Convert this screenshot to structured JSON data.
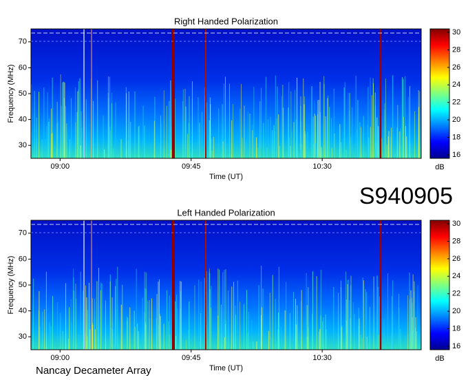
{
  "chart_data": [
    {
      "type": "heatmap",
      "title": "Right Handed Polarization",
      "xlabel": "Time (UT)",
      "ylabel": "Frequency (MHz)",
      "xlim": [
        530,
        664
      ],
      "xticks": [
        {
          "value": 540,
          "label": "09:00"
        },
        {
          "value": 585,
          "label": "09:45"
        },
        {
          "value": 630,
          "label": "10:30"
        }
      ],
      "ylim": [
        25,
        75
      ],
      "yticks": [
        30,
        40,
        50,
        60,
        70
      ],
      "colorbar": {
        "label": "dB",
        "lim": [
          15.6,
          30.4
        ],
        "ticks": [
          16,
          18,
          20,
          22,
          24,
          26,
          28,
          30
        ]
      }
    },
    {
      "type": "heatmap",
      "title": "Left Handed Polarization",
      "xlabel": "Time (UT)",
      "ylabel": "Frequency (MHz)",
      "xlim": [
        530,
        664
      ],
      "xticks": [
        {
          "value": 540,
          "label": "09:00"
        },
        {
          "value": 585,
          "label": "09:45"
        },
        {
          "value": 630,
          "label": "10:30"
        }
      ],
      "ylim": [
        25,
        75
      ],
      "yticks": [
        30,
        40,
        50,
        60,
        70
      ],
      "colorbar": {
        "label": "dB",
        "lim": [
          15.6,
          30.4
        ],
        "ticks": [
          16,
          18,
          20,
          22,
          24,
          26,
          28,
          30
        ]
      }
    }
  ],
  "observation_id": "S940905",
  "instrument": "Nancay Decameter Array"
}
